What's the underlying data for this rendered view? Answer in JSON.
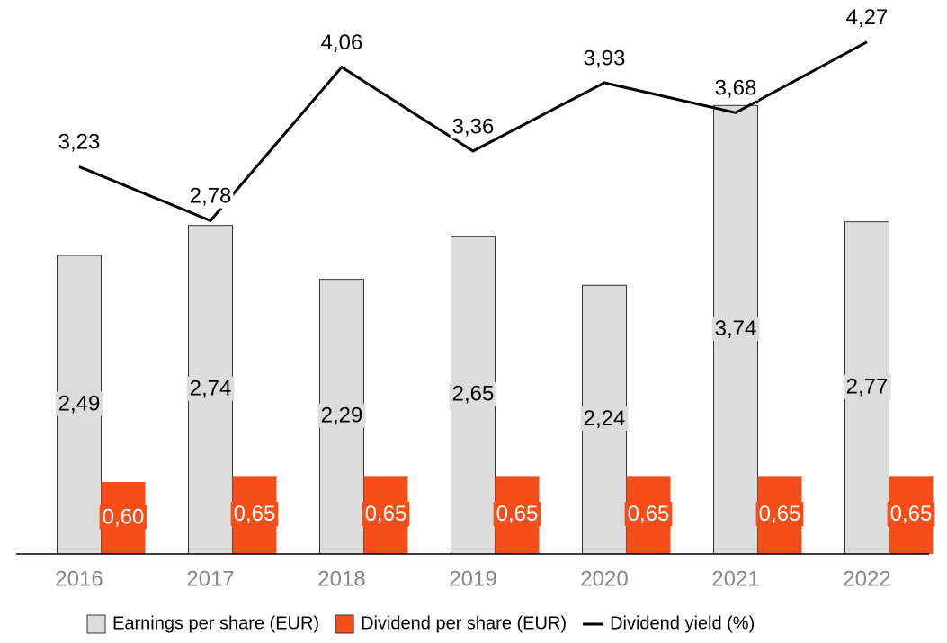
{
  "chart_data": {
    "type": "bar",
    "categories": [
      "2016",
      "2017",
      "2018",
      "2019",
      "2020",
      "2021",
      "2022"
    ],
    "ylim": [
      0,
      4.5
    ],
    "series": [
      {
        "name": "Earnings per share (EUR)",
        "type": "bar",
        "color": "#dcdcdc",
        "values": [
          2.49,
          2.74,
          2.29,
          2.65,
          2.24,
          3.74,
          2.77
        ],
        "value_labels": [
          "2,49",
          "2,74",
          "2,29",
          "2,65",
          "2,24",
          "3,74",
          "2,77"
        ]
      },
      {
        "name": "Dividend per share (EUR)",
        "type": "bar",
        "color": "#f54e1b",
        "values": [
          0.6,
          0.65,
          0.65,
          0.65,
          0.65,
          0.65,
          0.65
        ],
        "value_labels": [
          "0,60",
          "0,65",
          "0,65",
          "0,65",
          "0,65",
          "0,65",
          "0,65"
        ]
      },
      {
        "name": "Dividend yield (%)",
        "type": "line",
        "color": "#000000",
        "values": [
          3.23,
          2.78,
          4.06,
          3.36,
          3.93,
          3.68,
          4.27
        ],
        "value_labels": [
          "3,23",
          "2,78",
          "4,06",
          "3,36",
          "3,93",
          "3,68",
          "4,27"
        ]
      }
    ],
    "legend": "bottom"
  }
}
